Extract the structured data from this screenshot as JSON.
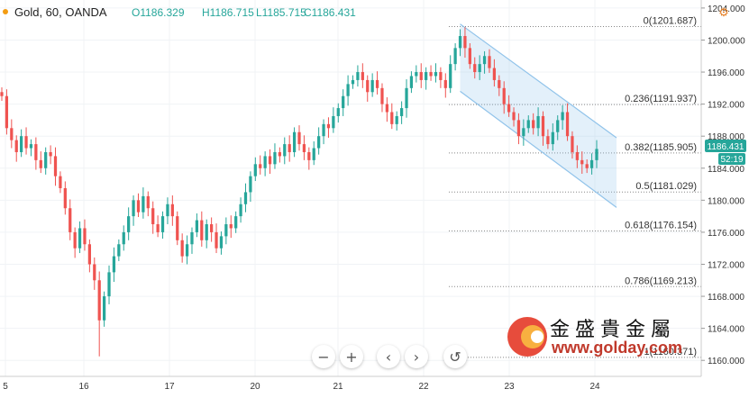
{
  "header": {
    "symbol": "Gold, 60, OANDA",
    "open": "O1186.329",
    "high": "H1186.715",
    "low": "L1185.715",
    "close": "C1186.431"
  },
  "price_badge": {
    "value": "1186.431",
    "timer": "52:19"
  },
  "watermark": {
    "chinese": "金盛貴金屬",
    "url": "www.golday.com"
  },
  "controls": {
    "zoom_out": "−",
    "zoom_in": "+",
    "scroll_left": "‹",
    "scroll_right": "›",
    "reset": "↺"
  },
  "colors": {
    "up": "#26a69a",
    "down": "#ef5350",
    "channel": "#90c3ea",
    "channel_fill": "rgba(144,195,234,0.25)",
    "badge": "#26a69a"
  },
  "chart_data": {
    "type": "candlestick",
    "ylim": [
      1158,
      1205
    ],
    "y_ticks": [
      "1160.000",
      "1164.000",
      "1168.000",
      "1172.000",
      "1176.000",
      "1180.000",
      "1184.000",
      "1188.000",
      "1192.000",
      "1196.000",
      "1200.000",
      "1204.000"
    ],
    "x_ticks": [
      "5",
      "16",
      "17",
      "20",
      "21",
      "22",
      "23",
      "24"
    ],
    "fib_levels": [
      {
        "label": "0(1201.687)",
        "value": 1201.687
      },
      {
        "label": "0.236(1191.937)",
        "value": 1191.937
      },
      {
        "label": "0.382(1185.905)",
        "value": 1185.905
      },
      {
        "label": "0.5(1181.029)",
        "value": 1181.029
      },
      {
        "label": "0.618(1176.154)",
        "value": 1176.154
      },
      {
        "label": "0.786(1169.213)",
        "value": 1169.213
      },
      {
        "label": "1(1160.371)",
        "value": 1160.371
      }
    ],
    "closes": [
      1193.0,
      1189.0,
      1187.5,
      1186.0,
      1188.0,
      1186.5,
      1187.0,
      1185.0,
      1184.0,
      1186.0,
      1185.5,
      1183.0,
      1181.5,
      1179.0,
      1176.0,
      1174.0,
      1176.5,
      1174.5,
      1172.0,
      1170.0,
      1165.0,
      1168.0,
      1171.0,
      1173.0,
      1174.5,
      1176.0,
      1178.0,
      1180.0,
      1178.5,
      1180.5,
      1179.0,
      1177.0,
      1176.0,
      1178.0,
      1179.5,
      1178.0,
      1175.0,
      1173.0,
      1174.5,
      1176.0,
      1177.5,
      1175.0,
      1177.0,
      1176.0,
      1174.0,
      1175.5,
      1177.0,
      1176.5,
      1178.0,
      1179.5,
      1181.0,
      1183.0,
      1184.5,
      1184.0,
      1185.5,
      1184.5,
      1186.0,
      1185.5,
      1187.0,
      1186.0,
      1188.5,
      1187.0,
      1186.0,
      1185.0,
      1186.5,
      1188.0,
      1189.5,
      1189.0,
      1190.5,
      1191.5,
      1193.0,
      1194.5,
      1195.0,
      1196.0,
      1195.0,
      1193.5,
      1195.0,
      1194.0,
      1192.0,
      1191.0,
      1189.5,
      1190.5,
      1191.5,
      1194.0,
      1195.5,
      1196.0,
      1195.0,
      1196.0,
      1195.5,
      1196.0,
      1195.0,
      1194.0,
      1197.0,
      1199.0,
      1200.5,
      1199.0,
      1197.0,
      1196.0,
      1197.0,
      1198.0,
      1196.5,
      1195.0,
      1194.0,
      1192.0,
      1191.0,
      1190.0,
      1188.0,
      1189.0,
      1190.0,
      1189.0,
      1190.5,
      1188.0,
      1187.0,
      1188.5,
      1190.0,
      1191.0,
      1188.0,
      1186.0,
      1185.0,
      1184.5,
      1184.0,
      1185.0,
      1186.4
    ]
  }
}
